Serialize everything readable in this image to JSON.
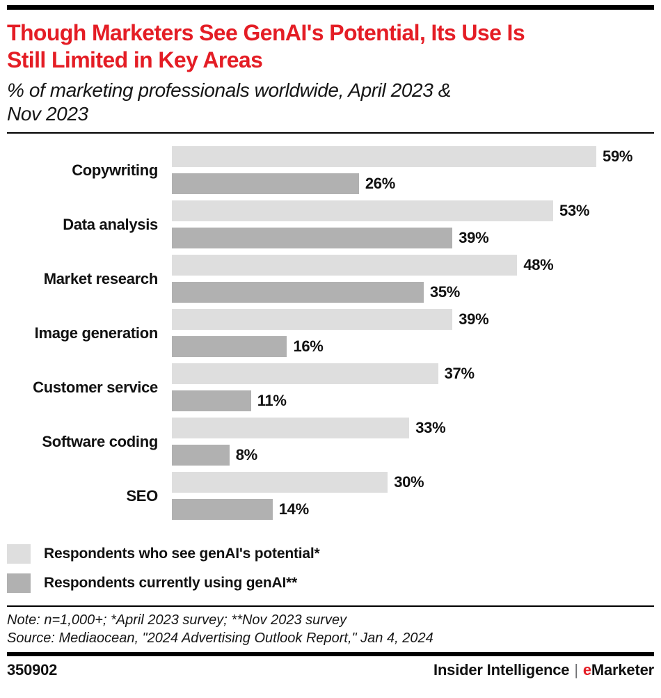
{
  "header": {
    "title_lines": [
      "Though Marketers See GenAI's Potential, Its Use Is",
      "Still Limited in Key Areas"
    ],
    "subtitle_lines": [
      "% of marketing professionals worldwide, April 2023 &",
      "Nov 2023"
    ]
  },
  "chart_data": {
    "type": "bar",
    "orientation": "horizontal",
    "title": "Though Marketers See GenAI's Potential, Its Use Is Still Limited in Key Areas",
    "subtitle": "% of marketing professionals worldwide, April 2023 & Nov 2023",
    "categories": [
      "Copywriting",
      "Data analysis",
      "Market research",
      "Image generation",
      "Customer service",
      "Software coding",
      "SEO"
    ],
    "series": [
      {
        "name": "Respondents who see genAI's potential*",
        "color": "#dedede",
        "values": [
          59,
          53,
          48,
          39,
          37,
          33,
          30
        ]
      },
      {
        "name": "Respondents currently using genAI**",
        "color": "#b1b1b1",
        "values": [
          26,
          39,
          35,
          16,
          11,
          8,
          14
        ]
      }
    ],
    "value_suffix": "%",
    "xlim": [
      0,
      63
    ],
    "grid": false,
    "legend_position": "bottom-left",
    "value_labels": "outside-end"
  },
  "notes": {
    "note": "Note: n=1,000+; *April 2023 survey; **Nov 2023 survey",
    "source": "Source: Mediaocean, \"2024 Advertising Outlook Report,\" Jan 4, 2024"
  },
  "footer": {
    "chart_id": "350902",
    "brand_left": "Insider Intelligence",
    "brand_divider": "|",
    "brand_e": "e",
    "brand_rest": "Marketer"
  },
  "colors": {
    "accent_red": "#e41d25",
    "text": "#111111",
    "bar_light": "#dedede",
    "bar_dark": "#b1b1b1",
    "rule_black": "#000000"
  }
}
